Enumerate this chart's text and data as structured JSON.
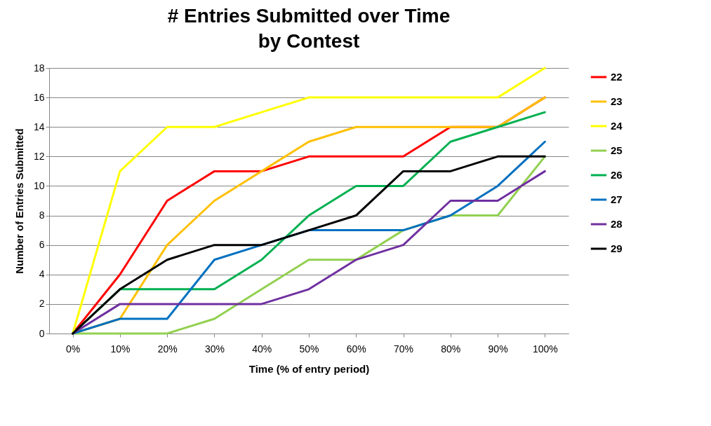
{
  "chart_data": {
    "type": "line",
    "title": "# Entries Submitted over Time\nby Contest",
    "xlabel": "Time (% of entry period)",
    "ylabel": "Number of Entries Submitted",
    "categories": [
      "0%",
      "10%",
      "20%",
      "30%",
      "40%",
      "50%",
      "60%",
      "70%",
      "80%",
      "90%",
      "100%"
    ],
    "ylim": [
      0,
      18
    ],
    "yticks": [
      0,
      2,
      4,
      6,
      8,
      10,
      12,
      14,
      16,
      18
    ],
    "grid": "y",
    "legend": "right",
    "marker": "none",
    "line_style": "solid",
    "series": [
      {
        "name": "22",
        "color": "#ff0000",
        "values": [
          0,
          4,
          9,
          11,
          11,
          12,
          12,
          12,
          14,
          14,
          16
        ]
      },
      {
        "name": "23",
        "color": "#ffc000",
        "values": [
          0,
          1,
          6,
          9,
          11,
          13,
          14,
          14,
          14,
          14,
          16
        ]
      },
      {
        "name": "24",
        "color": "#ffff00",
        "values": [
          0,
          11,
          14,
          14,
          15,
          16,
          16,
          16,
          16,
          16,
          18
        ]
      },
      {
        "name": "25",
        "color": "#92d050",
        "values": [
          0,
          0,
          0,
          1,
          3,
          5,
          5,
          7,
          8,
          8,
          12
        ]
      },
      {
        "name": "26",
        "color": "#00b050",
        "values": [
          0,
          3,
          3,
          3,
          5,
          8,
          10,
          10,
          13,
          14,
          15
        ]
      },
      {
        "name": "27",
        "color": "#0070c0",
        "values": [
          0,
          1,
          1,
          5,
          6,
          7,
          7,
          7,
          8,
          10,
          13
        ]
      },
      {
        "name": "28",
        "color": "#7030a0",
        "values": [
          0,
          2,
          2,
          2,
          2,
          3,
          5,
          6,
          9,
          9,
          11
        ]
      },
      {
        "name": "29",
        "color": "#000000",
        "values": [
          0,
          3,
          5,
          6,
          6,
          7,
          8,
          11,
          11,
          12,
          12
        ]
      }
    ]
  }
}
